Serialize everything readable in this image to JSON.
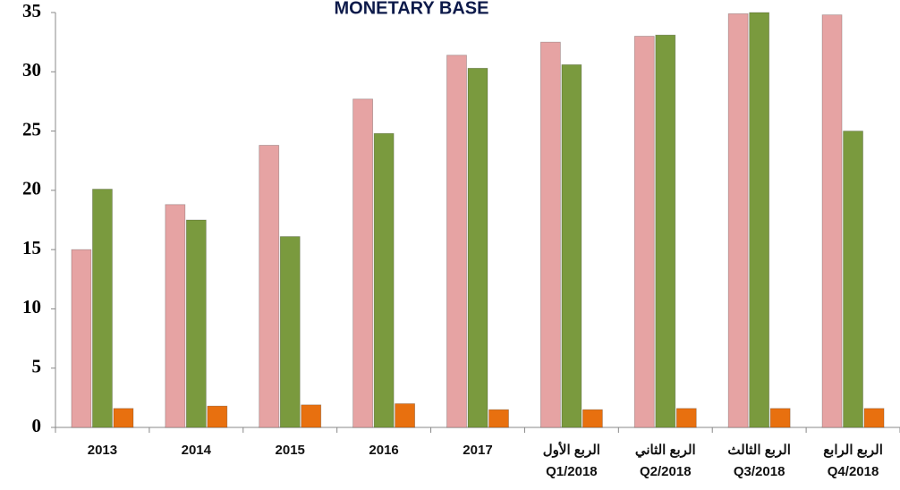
{
  "chart_data": {
    "type": "bar",
    "title": "MONETARY BASE",
    "categories": [
      "2013",
      "2014",
      "2015",
      "2016",
      "2017",
      "الربع الأول\nQ1/2018",
      "الربع الثاني\nQ2/2018",
      "الربع الثالث\nQ3/2018",
      "الربع الرابع\nQ4/2018"
    ],
    "series": [
      {
        "color": "#e6a3a3",
        "values": [
          15.0,
          18.8,
          23.8,
          27.7,
          31.4,
          32.5,
          33.0,
          34.9,
          34.8
        ]
      },
      {
        "color": "#7a9a3e",
        "values": [
          20.1,
          17.5,
          16.1,
          24.8,
          30.3,
          30.6,
          33.1,
          35.0,
          25.0
        ]
      },
      {
        "color": "#e8700f",
        "values": [
          1.6,
          1.8,
          1.9,
          2.0,
          1.5,
          1.5,
          1.6,
          1.6,
          1.6
        ]
      }
    ],
    "ylim": [
      0,
      35
    ],
    "yticks": [
      0,
      5,
      10,
      15,
      20,
      25,
      30,
      35
    ],
    "grid": false
  }
}
